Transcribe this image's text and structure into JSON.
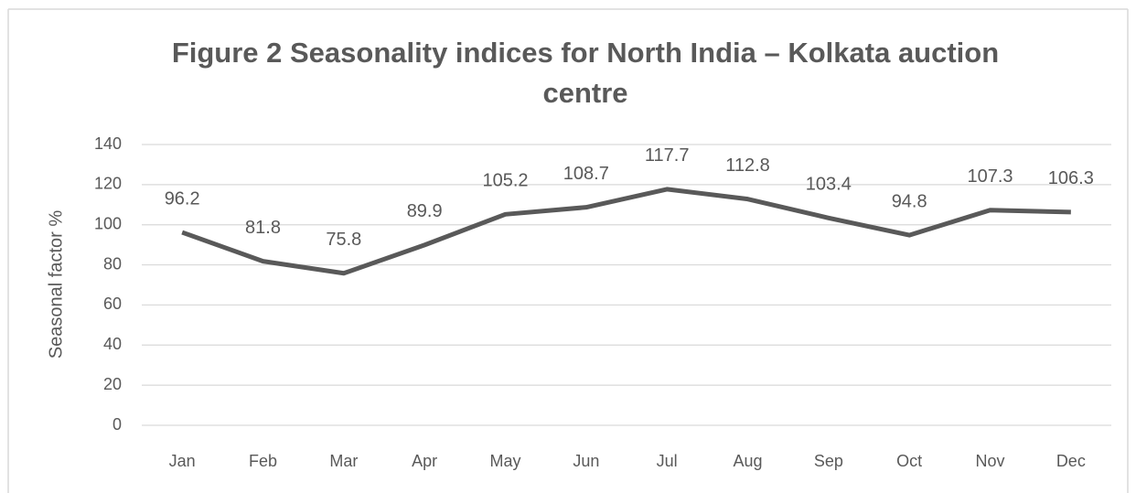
{
  "chart_data": {
    "type": "line",
    "title": "Figure 2  Seasonality indices for North India – Kolkata auction centre",
    "y_label": "Seasonal factor %",
    "categories": [
      "Jan",
      "Feb",
      "Mar",
      "Apr",
      "May",
      "Jun",
      "Jul",
      "Aug",
      "Sep",
      "Oct",
      "Nov",
      "Dec"
    ],
    "series": [
      {
        "name": "Seasonal factor",
        "color": "#595959",
        "values": [
          96.2,
          81.8,
          75.8,
          89.9,
          105.2,
          108.7,
          117.7,
          112.8,
          103.4,
          94.8,
          107.3,
          106.3
        ]
      }
    ],
    "ylim": [
      0,
      140
    ],
    "yticks": [
      0,
      20,
      40,
      60,
      80,
      100,
      120,
      140
    ],
    "grid": true,
    "data_labels": true
  }
}
